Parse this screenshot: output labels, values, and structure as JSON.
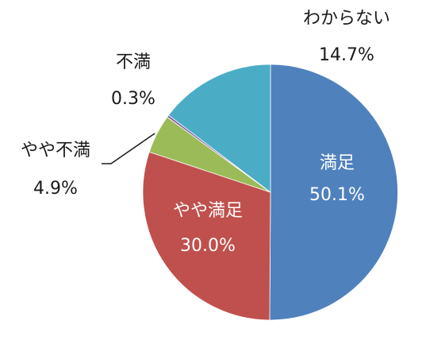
{
  "chart_data": {
    "type": "pie",
    "title": "",
    "start_angle_deg": 0,
    "direction": "clockwise",
    "legend": "none",
    "slices": [
      {
        "label": "満足",
        "value": 50.1,
        "value_label": "50.1%",
        "color": "#4F81BD",
        "label_position": "inside"
      },
      {
        "label": "やや満足",
        "value": 30.0,
        "value_label": "30.0%",
        "color": "#C0504D",
        "label_position": "inside"
      },
      {
        "label": "やや不満",
        "value": 4.9,
        "value_label": "4.9%",
        "color": "#9BBB59",
        "label_position": "outside",
        "leader_line": true
      },
      {
        "label": "不満",
        "value": 0.3,
        "value_label": "0.3%",
        "color": "#8064A2",
        "label_position": "outside"
      },
      {
        "label": "わからない",
        "value": 14.7,
        "value_label": "14.7%",
        "color": "#4BACC6",
        "label_position": "outside"
      }
    ]
  }
}
